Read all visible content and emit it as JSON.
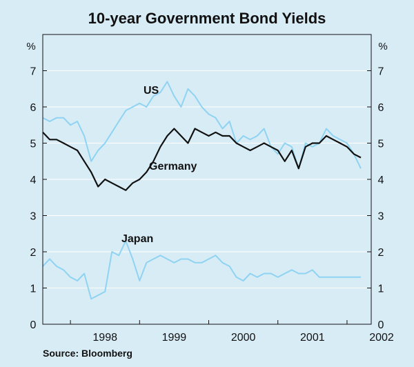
{
  "chart_data": {
    "type": "line",
    "title": "10-year Government Bond Yields",
    "ylabel_left": "%",
    "ylabel_right": "%",
    "ylim": [
      0,
      8
    ],
    "yticks": [
      0,
      1,
      2,
      3,
      4,
      5,
      6,
      7
    ],
    "xlim": [
      1997.6,
      2002.35
    ],
    "xticks": [
      {
        "value": 1998.5,
        "label": "1998"
      },
      {
        "value": 1999.5,
        "label": "1999"
      },
      {
        "value": 2000.5,
        "label": "2000"
      },
      {
        "value": 2001.5,
        "label": "2001"
      },
      {
        "value": 2002.5,
        "label": "2002"
      }
    ],
    "x_boundaries": [
      1998,
      1999,
      2000,
      2001,
      2002
    ],
    "source": "Source: Bloomberg",
    "colors": {
      "us": "#8fd3f2",
      "germany": "#111111",
      "japan": "#8fd3f2",
      "frame": "#111111",
      "grid": "#ffffff"
    },
    "annotations": [
      {
        "text": "US",
        "series": "us"
      },
      {
        "text": "Germany",
        "series": "germany"
      },
      {
        "text": "Japan",
        "series": "japan"
      }
    ],
    "series": [
      {
        "name": "US",
        "key": "us",
        "x": [
          1997.6,
          1997.7,
          1997.8,
          1997.9,
          1998.0,
          1998.1,
          1998.2,
          1998.3,
          1998.4,
          1998.5,
          1998.6,
          1998.7,
          1998.8,
          1998.9,
          1999.0,
          1999.1,
          1999.2,
          1999.3,
          1999.4,
          1999.5,
          1999.6,
          1999.7,
          1999.8,
          1999.9,
          2000.0,
          2000.1,
          2000.2,
          2000.3,
          2000.4,
          2000.5,
          2000.6,
          2000.7,
          2000.8,
          2000.9,
          2001.0,
          2001.1,
          2001.2,
          2001.3,
          2001.4,
          2001.5,
          2001.6,
          2001.7,
          2001.8,
          2001.9,
          2002.0,
          2002.1,
          2002.2
        ],
        "values": [
          5.7,
          5.6,
          5.7,
          5.7,
          5.5,
          5.6,
          5.2,
          4.5,
          4.8,
          5.0,
          5.3,
          5.6,
          5.9,
          6.0,
          6.1,
          6.0,
          6.3,
          6.4,
          6.7,
          6.3,
          6.0,
          6.5,
          6.3,
          6.0,
          5.8,
          5.7,
          5.4,
          5.6,
          5.0,
          5.2,
          5.1,
          5.2,
          5.4,
          4.9,
          4.7,
          5.0,
          4.9,
          4.3,
          5.0,
          4.9,
          5.0,
          5.4,
          5.2,
          5.1,
          5.0,
          4.7,
          4.3
        ]
      },
      {
        "name": "Germany",
        "key": "germany",
        "x": [
          1997.6,
          1997.7,
          1997.8,
          1997.9,
          1998.0,
          1998.1,
          1998.2,
          1998.3,
          1998.4,
          1998.5,
          1998.6,
          1998.7,
          1998.8,
          1998.9,
          1999.0,
          1999.1,
          1999.2,
          1999.3,
          1999.4,
          1999.5,
          1999.6,
          1999.7,
          1999.8,
          1999.9,
          2000.0,
          2000.1,
          2000.2,
          2000.3,
          2000.4,
          2000.5,
          2000.6,
          2000.7,
          2000.8,
          2000.9,
          2001.0,
          2001.1,
          2001.2,
          2001.3,
          2001.4,
          2001.5,
          2001.6,
          2001.7,
          2001.8,
          2001.9,
          2002.0,
          2002.1,
          2002.2
        ],
        "values": [
          5.3,
          5.1,
          5.1,
          5.0,
          4.9,
          4.8,
          4.5,
          4.2,
          3.8,
          4.0,
          3.9,
          3.8,
          3.7,
          3.9,
          4.0,
          4.2,
          4.5,
          4.9,
          5.2,
          5.4,
          5.2,
          5.0,
          5.4,
          5.3,
          5.2,
          5.3,
          5.2,
          5.2,
          5.0,
          4.9,
          4.8,
          4.9,
          5.0,
          4.9,
          4.8,
          4.5,
          4.8,
          4.3,
          4.9,
          5.0,
          5.0,
          5.2,
          5.1,
          5.0,
          4.9,
          4.7,
          4.6
        ]
      },
      {
        "name": "Japan",
        "key": "japan",
        "x": [
          1997.6,
          1997.7,
          1997.8,
          1997.9,
          1998.0,
          1998.1,
          1998.2,
          1998.3,
          1998.4,
          1998.5,
          1998.6,
          1998.7,
          1998.8,
          1998.9,
          1999.0,
          1999.1,
          1999.2,
          1999.3,
          1999.4,
          1999.5,
          1999.6,
          1999.7,
          1999.8,
          1999.9,
          2000.0,
          2000.1,
          2000.2,
          2000.3,
          2000.4,
          2000.5,
          2000.6,
          2000.7,
          2000.8,
          2000.9,
          2001.0,
          2001.1,
          2001.2,
          2001.3,
          2001.4,
          2001.5,
          2001.6,
          2001.7,
          2001.8,
          2001.9,
          2002.0,
          2002.1,
          2002.2
        ],
        "values": [
          1.6,
          1.8,
          1.6,
          1.5,
          1.3,
          1.2,
          1.4,
          0.7,
          0.8,
          0.9,
          2.0,
          1.9,
          2.3,
          1.8,
          1.2,
          1.7,
          1.8,
          1.9,
          1.8,
          1.7,
          1.8,
          1.8,
          1.7,
          1.7,
          1.8,
          1.9,
          1.7,
          1.6,
          1.3,
          1.2,
          1.4,
          1.3,
          1.4,
          1.4,
          1.3,
          1.4,
          1.5,
          1.4,
          1.4,
          1.5,
          1.3,
          1.3,
          1.3,
          1.3,
          1.3,
          1.3,
          1.3
        ]
      }
    ]
  }
}
